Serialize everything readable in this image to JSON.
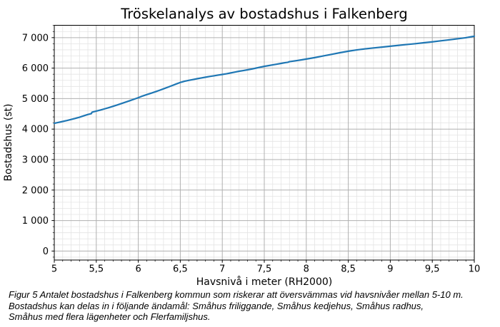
{
  "caption": "Figur 5 Antalet bostadshus i Falkenberg kommun som riskerar att översvämmas vid havsnivåer mellan 5-10 m.\nBostadshus kan delas in i följande ändamål: Småhus friliggande, Småhus kedjehus, Småhus radhus,\nSmåhus med flera lägenheter och Flerfamiljshus.",
  "colors": {
    "line": "#1f77b4",
    "grid_major": "#b0b0b0",
    "grid_minor": "#e4e4e4",
    "spine": "#000000",
    "text": "#000000",
    "background": "#ffffff"
  },
  "chart_data": {
    "type": "line",
    "title": "Tröskelanalys av bostadshus i Falkenberg",
    "xlabel": "Havsnivå i meter (RH2000)",
    "ylabel": "Bostadshus (st)",
    "xlim": [
      5,
      10
    ],
    "ylim": [
      -295,
      7405
    ],
    "grid": "major+minor",
    "legend": "none",
    "x_ticks": {
      "values": [
        5,
        5.5,
        6,
        6.5,
        7,
        7.5,
        8,
        8.5,
        9,
        9.5,
        10
      ],
      "labels": [
        "5",
        "5,5",
        "6",
        "6,5",
        "7",
        "7,5",
        "8",
        "8,5",
        "9",
        "9,5",
        "10"
      ]
    },
    "y_ticks": {
      "values": [
        0,
        1000,
        2000,
        3000,
        4000,
        5000,
        6000,
        7000
      ],
      "labels": [
        "0",
        "1 000",
        "2 000",
        "3 000",
        "4 000",
        "5 000",
        "6 000",
        "7 000"
      ]
    },
    "x_minor_step": 0.1,
    "y_minor_step": 200,
    "series": [
      {
        "name": "Bostadshus",
        "points": [
          [
            5.0,
            4190
          ],
          [
            5.05,
            4220
          ],
          [
            5.1,
            4250
          ],
          [
            5.15,
            4280
          ],
          [
            5.2,
            4315
          ],
          [
            5.25,
            4350
          ],
          [
            5.3,
            4390
          ],
          [
            5.35,
            4435
          ],
          [
            5.4,
            4480
          ],
          [
            5.44,
            4505
          ],
          [
            5.45,
            4555
          ],
          [
            5.5,
            4590
          ],
          [
            5.55,
            4625
          ],
          [
            5.6,
            4665
          ],
          [
            5.65,
            4705
          ],
          [
            5.7,
            4748
          ],
          [
            5.75,
            4792
          ],
          [
            5.8,
            4838
          ],
          [
            5.85,
            4885
          ],
          [
            5.9,
            4932
          ],
          [
            5.95,
            4980
          ],
          [
            6.0,
            5030
          ],
          [
            6.05,
            5085
          ],
          [
            6.1,
            5130
          ],
          [
            6.15,
            5175
          ],
          [
            6.2,
            5222
          ],
          [
            6.25,
            5270
          ],
          [
            6.3,
            5320
          ],
          [
            6.35,
            5372
          ],
          [
            6.4,
            5425
          ],
          [
            6.45,
            5478
          ],
          [
            6.5,
            5530
          ],
          [
            6.55,
            5568
          ],
          [
            6.6,
            5598
          ],
          [
            6.65,
            5625
          ],
          [
            6.7,
            5652
          ],
          [
            6.75,
            5678
          ],
          [
            6.8,
            5702
          ],
          [
            6.85,
            5726
          ],
          [
            6.9,
            5748
          ],
          [
            6.95,
            5770
          ],
          [
            7.0,
            5792
          ],
          [
            7.05,
            5815
          ],
          [
            7.1,
            5842
          ],
          [
            7.15,
            5870
          ],
          [
            7.2,
            5898
          ],
          [
            7.25,
            5920
          ],
          [
            7.3,
            5944
          ],
          [
            7.35,
            5970
          ],
          [
            7.4,
            6000
          ],
          [
            7.45,
            6030
          ],
          [
            7.5,
            6058
          ],
          [
            7.55,
            6082
          ],
          [
            7.6,
            6106
          ],
          [
            7.65,
            6130
          ],
          [
            7.7,
            6155
          ],
          [
            7.75,
            6180
          ],
          [
            7.78,
            6192
          ],
          [
            7.8,
            6212
          ],
          [
            7.85,
            6232
          ],
          [
            7.9,
            6252
          ],
          [
            7.95,
            6275
          ],
          [
            8.0,
            6298
          ],
          [
            8.1,
            6345
          ],
          [
            8.2,
            6398
          ],
          [
            8.3,
            6452
          ],
          [
            8.4,
            6505
          ],
          [
            8.5,
            6555
          ],
          [
            8.6,
            6598
          ],
          [
            8.65,
            6615
          ],
          [
            8.7,
            6632
          ],
          [
            8.8,
            6662
          ],
          [
            8.9,
            6690
          ],
          [
            9.0,
            6718
          ],
          [
            9.1,
            6748
          ],
          [
            9.2,
            6775
          ],
          [
            9.3,
            6802
          ],
          [
            9.4,
            6832
          ],
          [
            9.5,
            6862
          ],
          [
            9.6,
            6895
          ],
          [
            9.7,
            6928
          ],
          [
            9.75,
            6945
          ],
          [
            9.8,
            6962
          ],
          [
            9.9,
            6998
          ],
          [
            9.95,
            7022
          ],
          [
            10.0,
            7048
          ]
        ]
      }
    ]
  }
}
